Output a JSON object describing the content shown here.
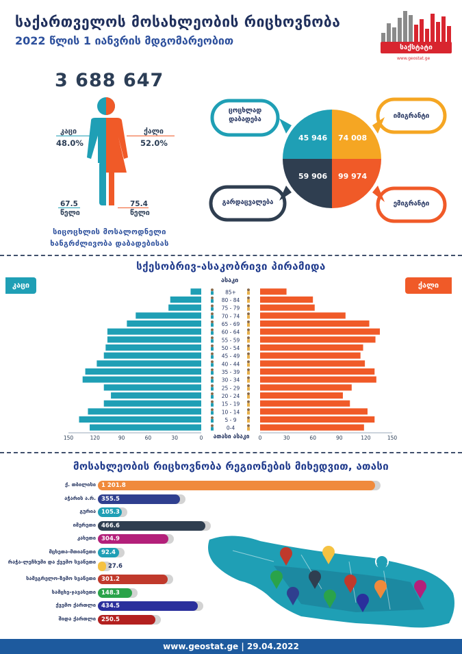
{
  "header": {
    "title": "საქართველოს მოსახლეობის რიცხოვნობა",
    "subtitle": "2022 წლის 1 იანვრის მდგომარეობით",
    "logo_text": "საქსტატი",
    "logo_url": "www.geostat.ge",
    "logo_colors": [
      "#8a8a8a",
      "#d8252f"
    ]
  },
  "summary": {
    "total": "3 688 647",
    "male_label": "კაცი",
    "male_pct": "48.0%",
    "female_label": "ქალი",
    "female_pct": "52.0%",
    "male_life": "67.5",
    "female_life": "75.4",
    "years_label": "წელი",
    "life_caption_1": "სიცოცხლის მოსალოდნელი",
    "life_caption_2": "ხანგრძლივობა დაბადებისას",
    "male_color": "#1f9fb5",
    "female_color": "#f05a28"
  },
  "vitals": {
    "births_label_1": "ცოცხლად",
    "births_label_2": "დაბადება",
    "deaths_label": "გარდაცვალება",
    "immigrants_label": "იმიგრანტი",
    "emigrants_label": "ემიგრანტი",
    "births": "45 946",
    "immigrants": "74 008",
    "deaths": "59 906",
    "emigrants": "99 974",
    "colors": {
      "births": "#1f9fb5",
      "immigrants": "#f5a623",
      "deaths": "#2f3e50",
      "emigrants": "#f05a28"
    }
  },
  "pyramid_header": {
    "title": "სქესობრივ-ასაკობრივი პირამიდა",
    "male_badge": "კაცი",
    "female_badge": "ქალი",
    "age_label": "ასაკი",
    "axis_unit": "ათასი",
    "male_ticks": [
      "150",
      "120",
      "90",
      "60",
      "30",
      "0"
    ],
    "female_ticks": [
      "0",
      "30",
      "60",
      "90",
      "120",
      "150"
    ]
  },
  "regions_header": {
    "title": "მოსახლეობის რიცხოვნობა რეგიონების მიხედვით, ათასი"
  },
  "footer": {
    "text": "www.geostat.ge | 29.04.2022"
  },
  "chart_data": [
    {
      "type": "bar",
      "orientation": "horizontal-pyramid",
      "title": "სქესობრივ-ასაკობრივი პირამიდა",
      "categories": [
        "0-4",
        "5 - 9",
        "10 - 14",
        "15 - 19",
        "20 - 24",
        "25 - 29",
        "30 - 34",
        "35 - 39",
        "40 - 44",
        "45 - 49",
        "50 - 54",
        "55 - 59",
        "60 - 64",
        "65 - 69",
        "70 - 74",
        "75 - 79",
        "80 - 84",
        "85+"
      ],
      "series": [
        {
          "name": "კაცი",
          "color": "#1f9fb5",
          "values": [
            126,
            138,
            128,
            110,
            102,
            110,
            134,
            131,
            118,
            110,
            108,
            106,
            106,
            84,
            74,
            37,
            35,
            12
          ]
        },
        {
          "name": "ქალი",
          "color": "#f05a28",
          "values": [
            118,
            130,
            122,
            102,
            94,
            104,
            132,
            130,
            119,
            114,
            117,
            131,
            136,
            124,
            97,
            62,
            60,
            30
          ]
        }
      ],
      "xlim": [
        0,
        150
      ],
      "xlabel": "ათასი",
      "ylabel": "ასაკი"
    },
    {
      "type": "bar",
      "orientation": "horizontal",
      "title": "მოსახლეობის რიცხოვნობა რეგიონების მიხედვით, ათასი",
      "categories": [
        "ქ. თბილისი",
        "აჭარის ა.რ.",
        "გურია",
        "იმერეთი",
        "კახეთი",
        "მცხეთა-მთიანეთი",
        "რაჭა-ლეჩხუმი და ქვემო სვანეთი",
        "სამეგრელო-ზემო სვანეთი",
        "სამცხე-ჯავახეთი",
        "ქვემო ქართლი",
        "შიდა ქართლი"
      ],
      "values": [
        1201.8,
        355.5,
        105.3,
        466.6,
        304.9,
        92.4,
        27.6,
        301.2,
        148.3,
        434.5,
        250.5
      ],
      "value_labels": [
        "1 201.8",
        "355.5",
        "105.3",
        "466.6",
        "304.9",
        "92.4",
        "27.6",
        "301.2",
        "148.3",
        "434.5",
        "250.5"
      ],
      "colors": [
        "#f08a3c",
        "#2f3f8f",
        "#1f9fb5",
        "#2f3e50",
        "#b3207a",
        "#1f9fb5",
        "#f5c242",
        "#c0392b",
        "#2aa34a",
        "#2a2f9c",
        "#b3201f"
      ],
      "xlim": [
        0,
        1201.8
      ]
    }
  ]
}
